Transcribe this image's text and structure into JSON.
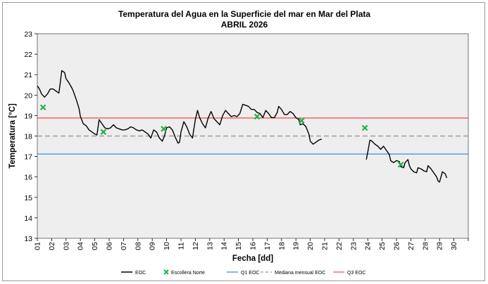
{
  "chart_data": {
    "type": "line",
    "title": "Temperatura del Agua en la Superficie del mar en Mar del Plata",
    "subtitle": "ABRIL 2026",
    "xlabel": "Fecha [dd]",
    "ylabel": "Temperatura [°C]",
    "xlim": [
      1,
      31
    ],
    "ylim": [
      13,
      23
    ],
    "y_ticks": [
      13,
      14,
      15,
      16,
      17,
      18,
      19,
      20,
      21,
      22,
      23
    ],
    "x_tick_labels": [
      "01",
      "02",
      "03",
      "04",
      "05",
      "06",
      "07",
      "08",
      "09",
      "10",
      "11",
      "12",
      "13",
      "14",
      "15",
      "16",
      "17",
      "18",
      "19",
      "20",
      "21",
      "22",
      "23",
      "24",
      "25",
      "26",
      "27",
      "28",
      "29",
      "30"
    ],
    "grid": false,
    "legend_position": "bottom",
    "colors": {
      "eoc": "#000000",
      "escollera": "#1fb24a",
      "q1": "#3a8ee0",
      "mediana": "#a6a6a6",
      "q3": "#f04a4a",
      "plot_bg": "#eeeeee"
    },
    "series": [
      {
        "name": "EOC",
        "segments": [
          [
            [
              1.0,
              20.45
            ],
            [
              1.15,
              20.3
            ],
            [
              1.3,
              20.05
            ],
            [
              1.5,
              19.9
            ],
            [
              1.7,
              20.05
            ],
            [
              1.9,
              20.3
            ],
            [
              2.1,
              20.3
            ],
            [
              2.3,
              20.2
            ],
            [
              2.5,
              20.1
            ],
            [
              2.6,
              20.6
            ],
            [
              2.7,
              21.2
            ],
            [
              2.9,
              21.1
            ],
            [
              3.0,
              20.8
            ],
            [
              3.2,
              20.6
            ],
            [
              3.4,
              20.35
            ],
            [
              3.5,
              20.2
            ],
            [
              3.7,
              19.8
            ],
            [
              3.9,
              19.35
            ],
            [
              4.0,
              18.95
            ],
            [
              4.2,
              18.6
            ],
            [
              4.4,
              18.5
            ],
            [
              4.6,
              18.3
            ],
            [
              4.8,
              18.2
            ],
            [
              5.0,
              18.1
            ],
            [
              5.15,
              18.05
            ],
            [
              5.3,
              18.8
            ],
            [
              5.5,
              18.6
            ],
            [
              5.7,
              18.4
            ],
            [
              5.9,
              18.35
            ],
            [
              6.1,
              18.4
            ],
            [
              6.3,
              18.55
            ],
            [
              6.5,
              18.4
            ],
            [
              6.7,
              18.35
            ],
            [
              6.9,
              18.3
            ],
            [
              7.1,
              18.3
            ],
            [
              7.3,
              18.35
            ],
            [
              7.5,
              18.45
            ],
            [
              7.7,
              18.4
            ],
            [
              7.9,
              18.3
            ],
            [
              8.1,
              18.25
            ],
            [
              8.3,
              18.3
            ],
            [
              8.5,
              18.2
            ],
            [
              8.7,
              18.1
            ],
            [
              8.9,
              17.9
            ],
            [
              9.0,
              18.1
            ],
            [
              9.1,
              18.3
            ],
            [
              9.3,
              18.2
            ],
            [
              9.5,
              17.9
            ],
            [
              9.7,
              17.75
            ],
            [
              9.85,
              18.0
            ],
            [
              10.0,
              18.4
            ],
            [
              10.2,
              18.45
            ],
            [
              10.4,
              18.3
            ],
            [
              10.6,
              17.95
            ],
            [
              10.8,
              17.65
            ],
            [
              10.9,
              17.7
            ],
            [
              11.0,
              18.2
            ],
            [
              11.2,
              18.7
            ],
            [
              11.4,
              18.45
            ],
            [
              11.6,
              18.1
            ],
            [
              11.8,
              17.9
            ],
            [
              12.0,
              18.8
            ],
            [
              12.15,
              19.25
            ],
            [
              12.3,
              18.9
            ],
            [
              12.5,
              18.6
            ],
            [
              12.7,
              18.4
            ],
            [
              12.9,
              18.9
            ],
            [
              13.1,
              19.2
            ],
            [
              13.3,
              18.85
            ],
            [
              13.5,
              18.7
            ],
            [
              13.7,
              18.55
            ],
            [
              13.9,
              19.0
            ],
            [
              14.1,
              19.25
            ],
            [
              14.3,
              19.1
            ],
            [
              14.5,
              18.95
            ],
            [
              14.7,
              19.0
            ],
            [
              14.9,
              18.95
            ],
            [
              15.1,
              19.1
            ],
            [
              15.3,
              19.55
            ],
            [
              15.5,
              19.5
            ],
            [
              15.7,
              19.45
            ],
            [
              15.9,
              19.3
            ],
            [
              16.1,
              19.3
            ],
            [
              16.3,
              19.15
            ],
            [
              16.5,
              19.1
            ],
            [
              16.7,
              18.9
            ],
            [
              16.9,
              19.25
            ],
            [
              17.1,
              19.1
            ],
            [
              17.3,
              18.9
            ],
            [
              17.5,
              18.9
            ],
            [
              17.7,
              19.15
            ],
            [
              17.8,
              19.45
            ],
            [
              18.0,
              19.3
            ],
            [
              18.2,
              19.05
            ],
            [
              18.4,
              19.05
            ],
            [
              18.6,
              19.2
            ],
            [
              18.8,
              19.1
            ],
            [
              19.0,
              18.9
            ],
            [
              19.2,
              18.8
            ],
            [
              19.3,
              18.55
            ],
            [
              19.5,
              18.6
            ],
            [
              19.7,
              18.45
            ],
            [
              19.9,
              18.1
            ],
            [
              20.0,
              17.75
            ],
            [
              20.2,
              17.6
            ],
            [
              20.4,
              17.7
            ],
            [
              20.6,
              17.8
            ],
            [
              20.8,
              17.85
            ]
          ],
          [
            [
              23.9,
              16.85
            ],
            [
              24.0,
              17.2
            ],
            [
              24.15,
              17.8
            ],
            [
              24.3,
              17.75
            ],
            [
              24.5,
              17.6
            ],
            [
              24.7,
              17.5
            ],
            [
              24.9,
              17.35
            ],
            [
              25.1,
              17.5
            ],
            [
              25.3,
              17.3
            ],
            [
              25.5,
              17.1
            ],
            [
              25.6,
              16.8
            ],
            [
              25.8,
              16.7
            ],
            [
              26.0,
              16.8
            ],
            [
              26.2,
              16.75
            ],
            [
              26.3,
              16.5
            ],
            [
              26.5,
              16.45
            ],
            [
              26.6,
              16.7
            ],
            [
              26.8,
              16.85
            ],
            [
              26.9,
              16.55
            ],
            [
              27.0,
              16.4
            ],
            [
              27.2,
              16.25
            ],
            [
              27.4,
              16.2
            ],
            [
              27.5,
              16.45
            ],
            [
              27.7,
              16.4
            ],
            [
              27.9,
              16.3
            ],
            [
              28.1,
              16.25
            ],
            [
              28.2,
              16.55
            ],
            [
              28.4,
              16.4
            ],
            [
              28.6,
              16.2
            ],
            [
              28.8,
              16.0
            ],
            [
              28.9,
              15.8
            ],
            [
              29.0,
              15.75
            ],
            [
              29.1,
              16.0
            ],
            [
              29.2,
              16.25
            ],
            [
              29.4,
              16.15
            ],
            [
              29.5,
              15.95
            ]
          ]
        ]
      },
      {
        "name": "Escollera Norte",
        "points": [
          [
            1.4,
            19.4
          ],
          [
            5.6,
            18.2
          ],
          [
            9.8,
            18.35
          ],
          [
            16.3,
            18.95
          ],
          [
            19.4,
            18.75
          ],
          [
            23.8,
            18.4
          ],
          [
            26.3,
            16.6
          ]
        ]
      },
      {
        "name": "Q1 EOC",
        "value": 17.12
      },
      {
        "name": "Mediana mensual EOC",
        "value": 18.0
      },
      {
        "name": "Q3 EOC",
        "value": 18.88
      }
    ]
  },
  "legend": {
    "items": [
      "EOC",
      "Escollera Norte",
      "Q1 EOC",
      "Mediana mensual EOC",
      "Q3 EOC"
    ]
  }
}
